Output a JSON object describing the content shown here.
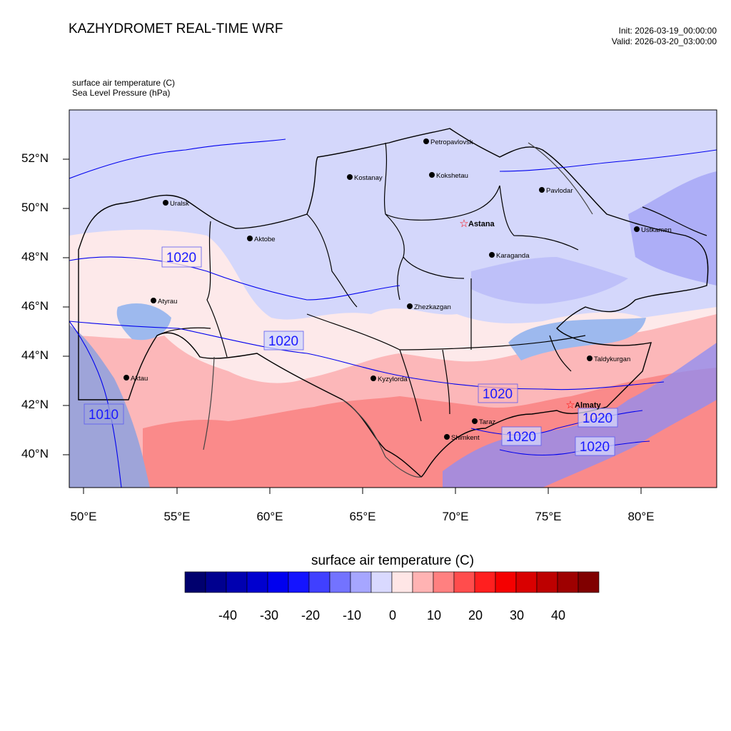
{
  "header": {
    "title": "KAZHYDROMET REAL-TIME WRF",
    "init": "Init: 2026-03-19_00:00:00",
    "valid": "Valid: 2026-03-20_03:00:00"
  },
  "variables": {
    "line1": "surface air temperature   (C)",
    "line2": "Sea Level Pressure   (hPa)"
  },
  "axes": {
    "lat_labels": [
      "52°N",
      "50°N",
      "48°N",
      "46°N",
      "44°N",
      "42°N",
      "40°N"
    ],
    "lon_labels": [
      "50°E",
      "55°E",
      "60°E",
      "65°E",
      "70°E",
      "75°E",
      "80°E"
    ]
  },
  "cities": [
    {
      "name": "Petropavlovsk",
      "marker": "dot"
    },
    {
      "name": "Kostanay",
      "marker": "dot"
    },
    {
      "name": "Kokshetau",
      "marker": "dot"
    },
    {
      "name": "Pavlodar",
      "marker": "dot"
    },
    {
      "name": "Uralsk",
      "marker": "dot"
    },
    {
      "name": "Aktobe",
      "marker": "dot"
    },
    {
      "name": "Astana",
      "marker": "star"
    },
    {
      "name": "Ustkamen",
      "marker": "dot"
    },
    {
      "name": "Karaganda",
      "marker": "dot"
    },
    {
      "name": "Atyrau",
      "marker": "dot"
    },
    {
      "name": "Zhezkazgan",
      "marker": "dot"
    },
    {
      "name": "Taldykurgan",
      "marker": "dot"
    },
    {
      "name": "Aktau",
      "marker": "dot"
    },
    {
      "name": "Kyzylorda",
      "marker": "dot"
    },
    {
      "name": "Almaty",
      "marker": "star"
    },
    {
      "name": "Taraz",
      "marker": "dot"
    },
    {
      "name": "Shimkent",
      "marker": "dot"
    }
  ],
  "isobar_labels": [
    "1020",
    "1020",
    "1010",
    "1020",
    "1020",
    "1020",
    "1020"
  ],
  "colorbar": {
    "title": "surface air temperature  (C)",
    "labels": [
      "-40",
      "-30",
      "-20",
      "-10",
      "0",
      "10",
      "20",
      "30",
      "40"
    ],
    "colors": [
      "#00006e",
      "#00008f",
      "#0000b0",
      "#0000cf",
      "#0000ef",
      "#1414ff",
      "#4040ff",
      "#7373ff",
      "#a6a6ff",
      "#d9d9ff",
      "#ffe6e6",
      "#ffb3b3",
      "#ff8080",
      "#ff4d4d",
      "#ff1f1f",
      "#f50000",
      "#d90000",
      "#bd0000",
      "#9e0000",
      "#800000"
    ]
  },
  "colors": {
    "cold_land": "#d4d7fb",
    "mild_land": "#fde9ea",
    "warm_land": "#fcb7b9",
    "hot_land": "#fa8a8a",
    "sea": "#9db9ee",
    "caspian": "#9ea4d9",
    "mountain_snow": "#8c8cf4",
    "isobar": "#0000ee",
    "border": "#000000"
  }
}
